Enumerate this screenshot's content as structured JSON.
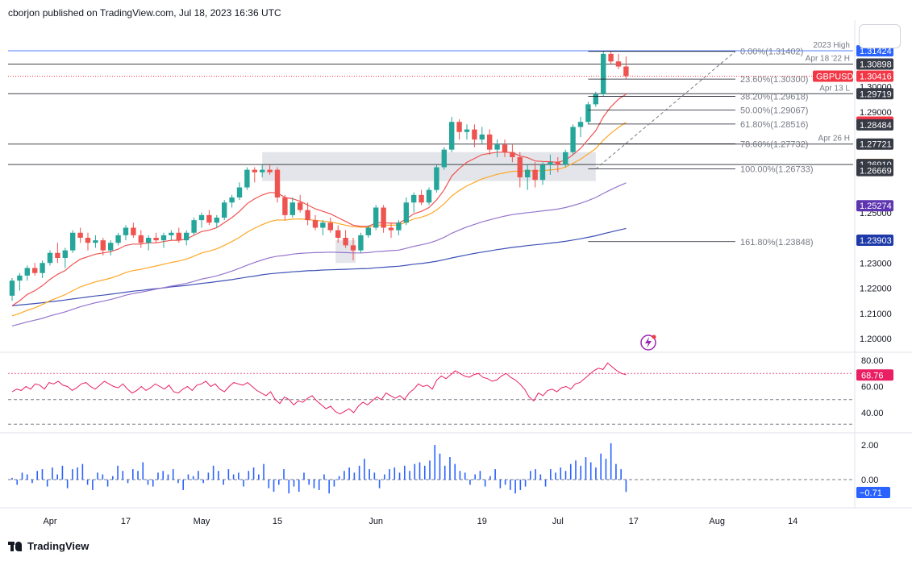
{
  "header": {
    "text": "cborjon published on TradingView.com, Jul 18, 2023 16:36 UTC"
  },
  "footer": {
    "brand": "TradingView"
  },
  "symbol": "GBPUSD",
  "colors": {
    "up": "#26a69a",
    "down": "#ef5350",
    "ema_fast": "#ef5350",
    "ema_mid": "#ffa726",
    "ema_slow1": "#9575cd",
    "ema_slow2": "#3f51b5",
    "rsi": "#e91e63",
    "hist": "#2962ff",
    "hline": "#131722"
  },
  "price_axis": {
    "ticks": [
      "1.30000",
      "1.29000",
      "1.25000",
      "1.23000",
      "1.22000",
      "1.21000",
      "1.20000"
    ],
    "tick_values": [
      1.3,
      1.29,
      1.25,
      1.23,
      1.22,
      1.21,
      1.2
    ]
  },
  "price_labels": [
    {
      "text": "1.31424",
      "value": 1.31424,
      "bg": "#2962ff"
    },
    {
      "text": "1.30898",
      "value": 1.30898,
      "bg": "#363a45"
    },
    {
      "text": "1.30416",
      "value": 1.30416,
      "bg": "#f23645"
    },
    {
      "text": "1.29719",
      "value": 1.29719,
      "bg": "#363a45"
    },
    {
      "text": "1.28592",
      "value": 1.28592,
      "bg": "#f23645"
    },
    {
      "text": "1.28484",
      "value": 1.28484,
      "bg": "#363a45"
    },
    {
      "text": "1.27721",
      "value": 1.27721,
      "bg": "#363a45"
    },
    {
      "text": "1.26912",
      "value": 1.26912,
      "bg": "#ff9800"
    },
    {
      "text": "1.26910",
      "value": 1.2691,
      "bg": "#363a45"
    },
    {
      "text": "1.26669",
      "value": 1.26669,
      "bg": "#363a45"
    },
    {
      "text": "1.25274",
      "value": 1.25274,
      "bg": "#5e35b1"
    },
    {
      "text": "1.23903",
      "value": 1.23903,
      "bg": "#1e3aa8"
    }
  ],
  "symbol_tag": {
    "text": "GBPUSD",
    "value": 1.30416
  },
  "hlines": [
    {
      "value": 1.31424,
      "name": "2023 High",
      "color": "#2962ff"
    },
    {
      "value": 1.30898,
      "name": "Apr 18 '22 H",
      "color": "#131722"
    },
    {
      "value": 1.29719,
      "name": "Apr 13 L",
      "color": "#131722"
    },
    {
      "value": 1.27721,
      "name": "Apr 26 H",
      "color": "#131722"
    },
    {
      "value": 1.2691,
      "name": "",
      "color": "#131722"
    }
  ],
  "fib_levels": [
    {
      "label": "0.00%(1.31402)",
      "value": 1.31402
    },
    {
      "label": "23.60%(1.30300)",
      "value": 1.303
    },
    {
      "label": "38.20%(1.29618)",
      "value": 1.29618
    },
    {
      "label": "50.00%(1.29067)",
      "value": 1.29067
    },
    {
      "label": "61.80%(1.28516)",
      "value": 1.28516
    },
    {
      "label": "78.60%(1.27732)",
      "value": 1.27732
    },
    {
      "label": "100.00%(1.26733)",
      "value": 1.26733
    },
    {
      "label": "161.80%(1.23848)",
      "value": 1.23848
    }
  ],
  "rsi": {
    "axis_ticks": [
      "80.00",
      "60.00",
      "40.00"
    ],
    "axis_values": [
      80,
      60,
      40
    ],
    "current_text": "68.76",
    "current": 68.76,
    "values": [
      56,
      58,
      57,
      60,
      58,
      62,
      61,
      58,
      63,
      62,
      64,
      61,
      60,
      57,
      59,
      62,
      63,
      60,
      58,
      61,
      64,
      62,
      60,
      59,
      62,
      58,
      55,
      57,
      60,
      57,
      59,
      62,
      60,
      58,
      61,
      56,
      55,
      58,
      60,
      57,
      61,
      62,
      64,
      60,
      62,
      58,
      56,
      60,
      63,
      62,
      61,
      63,
      60,
      57,
      55,
      53,
      56,
      50,
      47,
      52,
      50,
      46,
      49,
      48,
      51,
      53,
      49,
      46,
      43,
      45,
      41,
      39,
      41,
      43,
      40,
      45,
      48,
      46,
      49,
      52,
      50,
      55,
      53,
      51,
      53,
      50,
      55,
      58,
      62,
      60,
      61,
      58,
      65,
      68,
      66,
      69,
      72,
      70,
      68,
      67,
      69,
      70,
      67,
      66,
      64,
      65,
      68,
      70,
      67,
      65,
      62,
      58,
      52,
      49,
      55,
      53,
      57,
      58,
      56,
      59,
      60,
      58,
      62,
      63,
      66,
      69,
      72,
      74,
      73,
      78,
      75,
      72,
      70,
      69
    ]
  },
  "hist": {
    "axis_ticks": [
      "2.00",
      "0.00"
    ],
    "axis_values": [
      2.0,
      0.0
    ],
    "current_text": "−0.71",
    "current": -0.71,
    "values": [
      0.1,
      -0.3,
      0.4,
      0.3,
      -0.2,
      0.5,
      0.6,
      -0.4,
      0.7,
      0.3,
      0.8,
      -0.5,
      0.6,
      0.7,
      0.9,
      -0.3,
      -0.6,
      0.4,
      0.3,
      -0.4,
      0.2,
      0.8,
      0.5,
      -0.2,
      0.6,
      0.5,
      1.0,
      -0.3,
      -0.4,
      0.4,
      0.5,
      0.3,
      0.6,
      -0.2,
      -0.6,
      0.3,
      0.2,
      0.5,
      -0.2,
      0.4,
      0.8,
      0.5,
      -0.3,
      0.6,
      0.3,
      0.4,
      -0.4,
      0.5,
      0.7,
      0.3,
      0.9,
      -0.5,
      -0.7,
      -0.3,
      0.6,
      -0.8,
      -0.4,
      -0.7,
      0.4,
      -0.3,
      -0.5,
      -0.6,
      0.3,
      -0.8,
      -0.4,
      0.2,
      0.5,
      0.7,
      0.4,
      0.8,
      1.2,
      0.6,
      0.4,
      -0.5,
      0.3,
      0.6,
      0.7,
      0.4,
      0.8,
      0.5,
      0.9,
      1.0,
      0.8,
      1.1,
      2.0,
      1.5,
      0.8,
      1.3,
      0.9,
      0.5,
      0.4,
      -0.3,
      0.3,
      0.5,
      -0.4,
      0.2,
      0.6,
      -0.5,
      -0.3,
      -0.6,
      -0.8,
      -0.6,
      -0.4,
      0.5,
      0.6,
      0.3,
      -0.4,
      0.6,
      0.4,
      0.7,
      0.5,
      0.9,
      1.1,
      0.8,
      1.3,
      1.0,
      0.7,
      1.5,
      1.2,
      2.1,
      0.9,
      0.6,
      -0.71
    ]
  },
  "time_axis": {
    "ticks": [
      {
        "label": "Apr",
        "i": 5
      },
      {
        "label": "17",
        "i": 15
      },
      {
        "label": "May",
        "i": 25
      },
      {
        "label": "15",
        "i": 35
      },
      {
        "label": "Jun",
        "i": 48
      },
      {
        "label": "19",
        "i": 62
      },
      {
        "label": "Jul",
        "i": 72
      },
      {
        "label": "17",
        "i": 82
      },
      {
        "label": "Aug",
        "i": 93
      },
      {
        "label": "14",
        "i": 103
      }
    ]
  },
  "chart_data": {
    "type": "candlestick",
    "symbol": "GBPUSD",
    "interval": "1D",
    "ylim": [
      1.195,
      1.318
    ],
    "candles": [
      [
        1.217,
        1.224,
        1.215,
        1.223
      ],
      [
        1.223,
        1.226,
        1.219,
        1.225
      ],
      [
        1.225,
        1.229,
        1.223,
        1.228
      ],
      [
        1.228,
        1.23,
        1.225,
        1.226
      ],
      [
        1.226,
        1.231,
        1.224,
        1.23
      ],
      [
        1.23,
        1.235,
        1.229,
        1.234
      ],
      [
        1.234,
        1.238,
        1.23,
        1.232
      ],
      [
        1.232,
        1.236,
        1.228,
        1.235
      ],
      [
        1.235,
        1.243,
        1.234,
        1.242
      ],
      [
        1.242,
        1.244,
        1.238,
        1.24
      ],
      [
        1.24,
        1.242,
        1.235,
        1.238
      ],
      [
        1.238,
        1.241,
        1.236,
        1.239
      ],
      [
        1.239,
        1.24,
        1.233,
        1.235
      ],
      [
        1.235,
        1.239,
        1.233,
        1.238
      ],
      [
        1.238,
        1.242,
        1.237,
        1.241
      ],
      [
        1.241,
        1.245,
        1.239,
        1.244
      ],
      [
        1.244,
        1.246,
        1.24,
        1.241
      ],
      [
        1.241,
        1.243,
        1.236,
        1.238
      ],
      [
        1.238,
        1.241,
        1.235,
        1.24
      ],
      [
        1.24,
        1.242,
        1.238,
        1.239
      ],
      [
        1.239,
        1.242,
        1.236,
        1.241
      ],
      [
        1.241,
        1.243,
        1.239,
        1.242
      ],
      [
        1.242,
        1.244,
        1.238,
        1.239
      ],
      [
        1.239,
        1.243,
        1.237,
        1.242
      ],
      [
        1.242,
        1.248,
        1.241,
        1.247
      ],
      [
        1.247,
        1.25,
        1.244,
        1.249
      ],
      [
        1.249,
        1.251,
        1.245,
        1.246
      ],
      [
        1.246,
        1.249,
        1.244,
        1.248
      ],
      [
        1.248,
        1.255,
        1.247,
        1.254
      ],
      [
        1.254,
        1.257,
        1.252,
        1.256
      ],
      [
        1.256,
        1.262,
        1.255,
        1.26
      ],
      [
        1.26,
        1.268,
        1.259,
        1.267
      ],
      [
        1.267,
        1.268,
        1.262,
        1.266
      ],
      [
        1.266,
        1.269,
        1.264,
        1.267
      ],
      [
        1.267,
        1.269,
        1.265,
        1.266
      ],
      [
        1.267,
        1.268,
        1.254,
        1.256
      ],
      [
        1.256,
        1.257,
        1.247,
        1.249
      ],
      [
        1.249,
        1.256,
        1.248,
        1.254
      ],
      [
        1.254,
        1.257,
        1.25,
        1.251
      ],
      [
        1.251,
        1.254,
        1.245,
        1.247
      ],
      [
        1.247,
        1.249,
        1.243,
        1.244
      ],
      [
        1.244,
        1.247,
        1.241,
        1.246
      ],
      [
        1.246,
        1.248,
        1.242,
        1.243
      ],
      [
        1.243,
        1.245,
        1.238,
        1.24
      ],
      [
        1.24,
        1.243,
        1.236,
        1.237
      ],
      [
        1.237,
        1.24,
        1.231,
        1.235
      ],
      [
        1.235,
        1.242,
        1.234,
        1.241
      ],
      [
        1.241,
        1.245,
        1.24,
        1.244
      ],
      [
        1.244,
        1.253,
        1.243,
        1.252
      ],
      [
        1.252,
        1.253,
        1.242,
        1.244
      ],
      [
        1.244,
        1.246,
        1.24,
        1.243
      ],
      [
        1.243,
        1.247,
        1.241,
        1.246
      ],
      [
        1.246,
        1.256,
        1.245,
        1.254
      ],
      [
        1.254,
        1.258,
        1.25,
        1.257
      ],
      [
        1.257,
        1.259,
        1.253,
        1.254
      ],
      [
        1.254,
        1.26,
        1.253,
        1.259
      ],
      [
        1.259,
        1.269,
        1.258,
        1.268
      ],
      [
        1.268,
        1.276,
        1.267,
        1.275
      ],
      [
        1.275,
        1.288,
        1.274,
        1.286
      ],
      [
        1.286,
        1.287,
        1.279,
        1.282
      ],
      [
        1.282,
        1.285,
        1.279,
        1.283
      ],
      [
        1.283,
        1.285,
        1.276,
        1.279
      ],
      [
        1.279,
        1.284,
        1.277,
        1.281
      ],
      [
        1.281,
        1.283,
        1.273,
        1.275
      ],
      [
        1.275,
        1.279,
        1.272,
        1.277
      ],
      [
        1.277,
        1.279,
        1.272,
        1.274
      ],
      [
        1.274,
        1.277,
        1.27,
        1.272
      ],
      [
        1.272,
        1.274,
        1.26,
        1.264
      ],
      [
        1.264,
        1.269,
        1.259,
        1.267
      ],
      [
        1.267,
        1.27,
        1.26,
        1.263
      ],
      [
        1.263,
        1.27,
        1.261,
        1.269
      ],
      [
        1.269,
        1.273,
        1.265,
        1.27
      ],
      [
        1.27,
        1.272,
        1.266,
        1.269
      ],
      [
        1.269,
        1.275,
        1.268,
        1.274
      ],
      [
        1.274,
        1.285,
        1.273,
        1.284
      ],
      [
        1.284,
        1.288,
        1.28,
        1.286
      ],
      [
        1.286,
        1.294,
        1.285,
        1.293
      ],
      [
        1.293,
        1.298,
        1.292,
        1.297
      ],
      [
        1.297,
        1.314,
        1.296,
        1.313
      ],
      [
        1.313,
        1.314,
        1.309,
        1.31
      ],
      [
        1.31,
        1.313,
        1.307,
        1.308
      ],
      [
        1.308,
        1.312,
        1.303,
        1.3042
      ]
    ],
    "ema_fast": [
      1.213,
      1.215,
      1.2175,
      1.219,
      1.221,
      1.2235,
      1.2255,
      1.227,
      1.2295,
      1.2315,
      1.2325,
      1.2335,
      1.234,
      1.2345,
      1.2355,
      1.237,
      1.2375,
      1.2375,
      1.238,
      1.238,
      1.2385,
      1.239,
      1.239,
      1.2395,
      1.241,
      1.2425,
      1.243,
      1.244,
      1.246,
      1.248,
      1.2505,
      1.2535,
      1.2555,
      1.257,
      1.258,
      1.2578,
      1.256,
      1.2555,
      1.2545,
      1.253,
      1.2515,
      1.2505,
      1.2495,
      1.248,
      1.2465,
      1.245,
      1.2445,
      1.2445,
      1.246,
      1.246,
      1.2458,
      1.2458,
      1.2475,
      1.2495,
      1.2505,
      1.252,
      1.255,
      1.259,
      1.2645,
      1.2675,
      1.27,
      1.2715,
      1.273,
      1.2735,
      1.274,
      1.274,
      1.2738,
      1.2725,
      1.2718,
      1.2705,
      1.2703,
      1.2702,
      1.27,
      1.2708,
      1.273,
      1.2755,
      1.279,
      1.2825,
      1.288,
      1.292,
      1.295,
      1.297
    ],
    "ema_mid": [
      1.209,
      1.21,
      1.2112,
      1.2122,
      1.2135,
      1.215,
      1.2162,
      1.2174,
      1.219,
      1.2205,
      1.2215,
      1.2225,
      1.2232,
      1.224,
      1.225,
      1.2262,
      1.227,
      1.2275,
      1.2282,
      1.2288,
      1.2295,
      1.2302,
      1.2308,
      1.2315,
      1.2327,
      1.234,
      1.2347,
      1.2356,
      1.237,
      1.2385,
      1.2402,
      1.2422,
      1.2438,
      1.2452,
      1.2464,
      1.2471,
      1.247,
      1.2474,
      1.2475,
      1.2472,
      1.2469,
      1.2466,
      1.2463,
      1.2457,
      1.245,
      1.2444,
      1.2442,
      1.2442,
      1.245,
      1.245,
      1.245,
      1.2451,
      1.2462,
      1.2475,
      1.2482,
      1.2492,
      1.251,
      1.2535,
      1.2566,
      1.2588,
      1.2606,
      1.262,
      1.2634,
      1.2643,
      1.2652,
      1.2658,
      1.2664,
      1.2664,
      1.2666,
      1.2665,
      1.2667,
      1.2669,
      1.2672,
      1.268,
      1.2696,
      1.2712,
      1.2733,
      1.2754,
      1.2788,
      1.2815,
      1.2838,
      1.2859
    ],
    "ema_slow1": [
      1.205,
      1.2058,
      1.2066,
      1.2073,
      1.208,
      1.209,
      1.2098,
      1.2106,
      1.2116,
      1.2126,
      1.2134,
      1.2142,
      1.2148,
      1.2155,
      1.2163,
      1.2172,
      1.2179,
      1.2184,
      1.219,
      1.2196,
      1.2202,
      1.2208,
      1.2213,
      1.2219,
      1.2227,
      1.2236,
      1.2242,
      1.2249,
      1.2258,
      1.2268,
      1.2279,
      1.2291,
      1.2302,
      1.2312,
      1.2321,
      1.2327,
      1.233,
      1.2335,
      1.2338,
      1.234,
      1.2341,
      1.2342,
      1.2343,
      1.2342,
      1.2341,
      1.234,
      1.234,
      1.2341,
      1.2345,
      1.2347,
      1.2349,
      1.2351,
      1.2358,
      1.2366,
      1.2372,
      1.2379,
      1.2389,
      1.2402,
      1.2418,
      1.2431,
      1.2443,
      1.2453,
      1.2463,
      1.2471,
      1.2479,
      1.2486,
      1.2492,
      1.2496,
      1.25,
      1.2503,
      1.2507,
      1.251,
      1.2514,
      1.252,
      1.2528,
      1.2537,
      1.2548,
      1.256,
      1.2576,
      1.2591,
      1.2605,
      1.2618
    ],
    "ema_slow2": [
      1.213,
      1.2133,
      1.2136,
      1.2139,
      1.2142,
      1.2146,
      1.2149,
      1.2153,
      1.2157,
      1.2161,
      1.2165,
      1.2169,
      1.2172,
      1.2176,
      1.218,
      1.2184,
      1.2188,
      1.2191,
      1.2195,
      1.2198,
      1.2201,
      1.2205,
      1.2208,
      1.2211,
      1.2215,
      1.2219,
      1.2222,
      1.2226,
      1.223,
      1.2234,
      1.2239,
      1.2244,
      1.2248,
      1.2253,
      1.2257,
      1.226,
      1.2262,
      1.2265,
      1.2267,
      1.2269,
      1.227,
      1.2272,
      1.2273,
      1.2274,
      1.2275,
      1.2276,
      1.2277,
      1.2278,
      1.2281,
      1.2283,
      1.2285,
      1.2287,
      1.2291,
      1.2295,
      1.2298,
      1.2302,
      1.2307,
      1.2313,
      1.232,
      1.2326,
      1.2332,
      1.2338,
      1.2343,
      1.2348,
      1.2353,
      1.2357,
      1.2362,
      1.2365,
      1.2369,
      1.2372,
      1.2375,
      1.2379,
      1.2382,
      1.2386,
      1.2391,
      1.2396,
      1.2402,
      1.2408,
      1.2416,
      1.2423,
      1.243,
      1.2437
    ],
    "demand_zone": {
      "i0": 33,
      "i1": 77,
      "y0": 1.2625,
      "y1": 1.274
    },
    "small_zone": {
      "i0": 43,
      "i1": 45,
      "y0": 1.23,
      "y1": 1.239
    }
  }
}
